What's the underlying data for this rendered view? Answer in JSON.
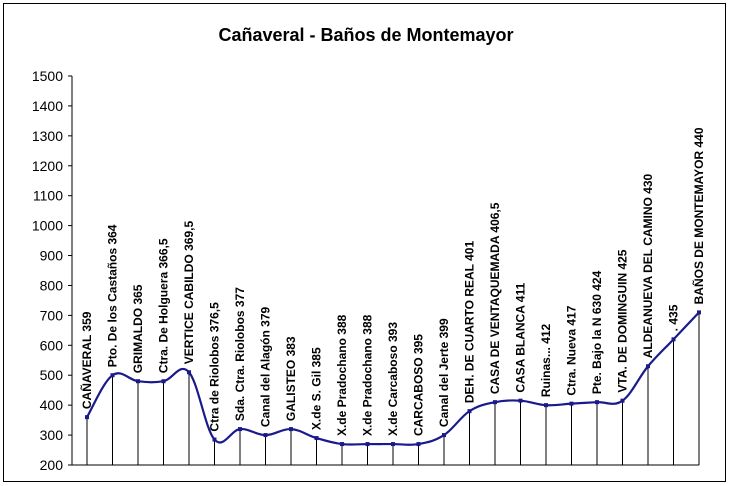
{
  "chart_data": {
    "type": "line",
    "title": "Cañaveral - Baños de Montemayor",
    "xlabel": "",
    "ylabel": "",
    "ylim": [
      200,
      1500
    ],
    "yticks": [
      200,
      300,
      400,
      500,
      600,
      700,
      800,
      900,
      1000,
      1100,
      1200,
      1300,
      1400,
      1500
    ],
    "grid": false,
    "legend": "none",
    "line_color": "#1a1a8c",
    "categories": [
      "CAÑAVERAL 359",
      "Pto. De los Castaños 364",
      "GRIMALDO 365",
      "Ctra. De Holguera 366,5",
      "VERTICE CABILDO 369,5",
      "Ctra de Riolobos 376,5",
      "Sda. Ctra. Riolobos 377",
      "Canal del Alagón 379",
      "GALISTEO 383",
      "X.de S. Gil 385",
      "X.de Pradochano 388",
      "X.de Pradochano 388",
      "X.de Carcaboso 393",
      "CARCABOSO 395",
      "Canal del Jerte 399",
      "DEH. DE CUARTO REAL 401",
      "CASA DE VENTAQUEMADA 406,5",
      "CASA BLANCA 411",
      "Ruinas... 412",
      "Ctra. Nueva 417",
      "Pte. Bajo la N 630 424",
      "VTA. DE DOMINGUIN 425",
      "ALDEANUEVA DEL CAMINO 430",
      ". 435",
      "BAÑOS DE MONTEMAYOR 440"
    ],
    "values": [
      360,
      500,
      480,
      480,
      510,
      285,
      320,
      300,
      320,
      290,
      270,
      270,
      270,
      270,
      300,
      380,
      410,
      415,
      400,
      405,
      410,
      415,
      530,
      620,
      710
    ]
  }
}
